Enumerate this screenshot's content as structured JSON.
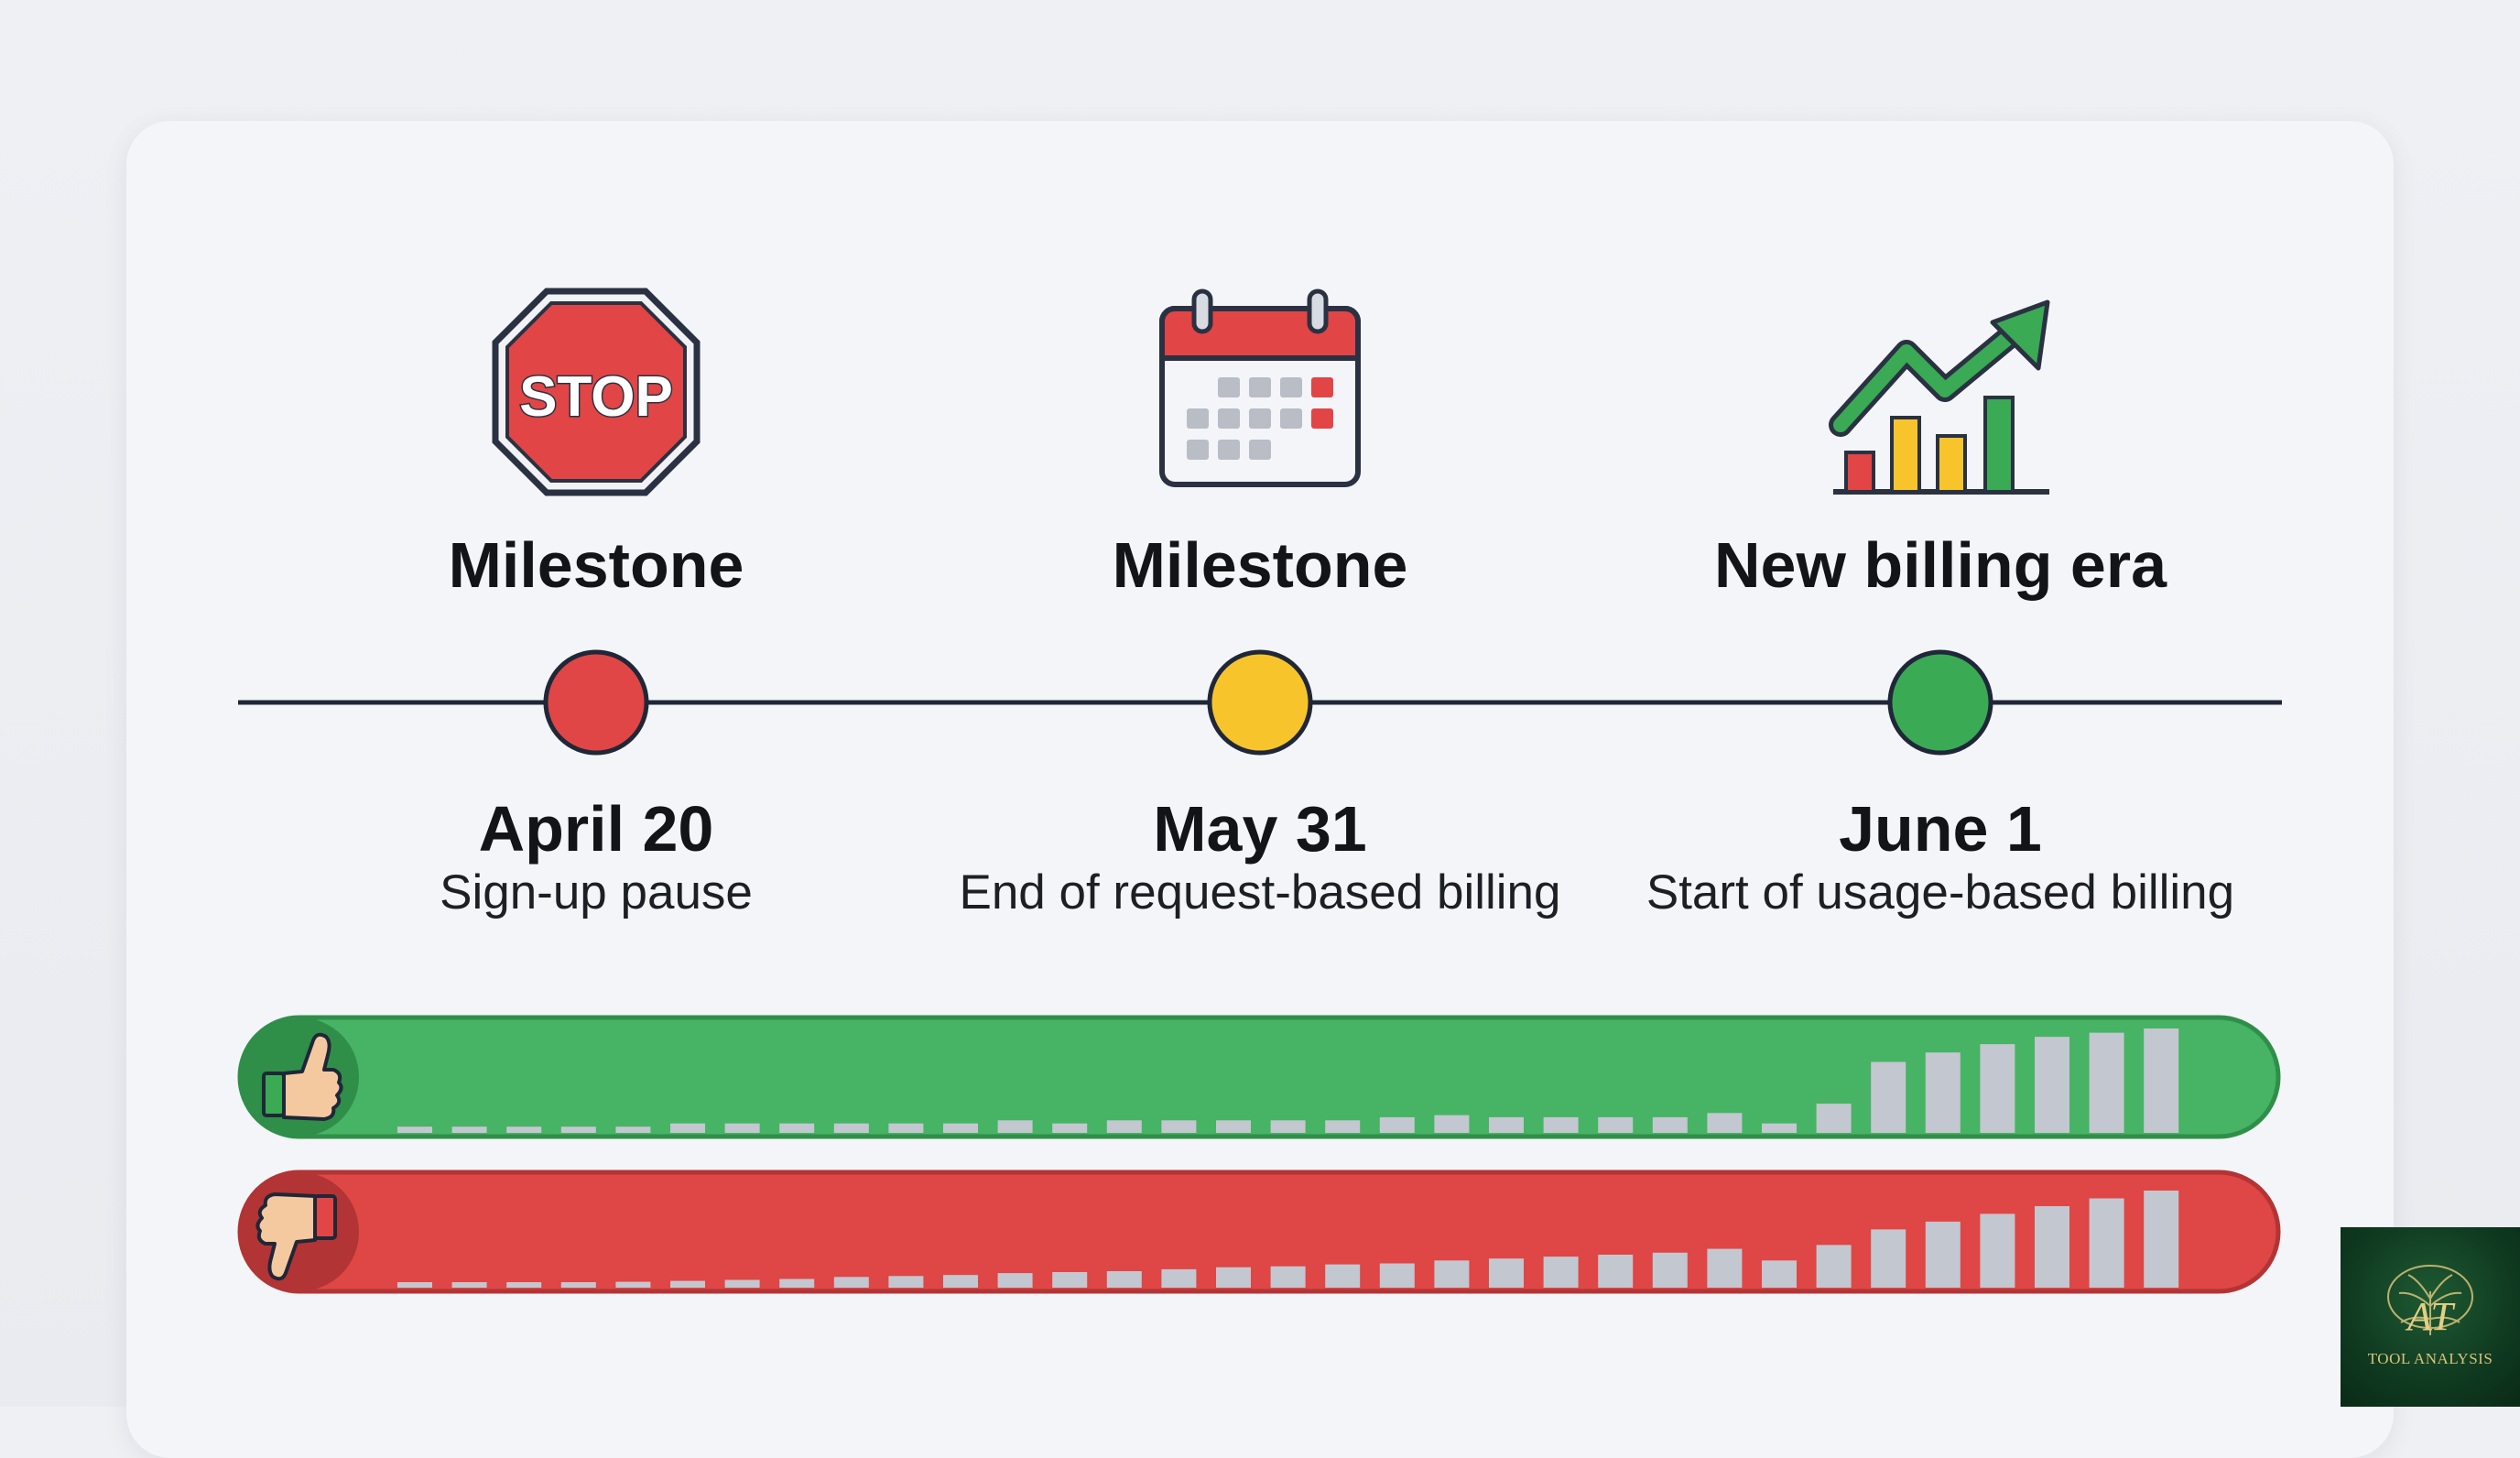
{
  "milestones": [
    {
      "icon": "stop-sign-icon",
      "stop_text": "STOP",
      "title": "Milestone",
      "date": "April 20",
      "description": "Sign-up pause",
      "dot_color": "#e04646"
    },
    {
      "icon": "calendar-icon",
      "title": "Milestone",
      "date": "May 31",
      "description": "End of request-based billing",
      "dot_color": "#f7c52b"
    },
    {
      "icon": "growth-chart-icon",
      "title": "New billing era",
      "date": "June 1",
      "description": "Start of usage-based billing",
      "dot_color": "#3aaa55"
    }
  ],
  "bars": {
    "positive": {
      "icon": "thumbs-up-icon",
      "color": "#47b364",
      "levels": [
        0.06,
        0.06,
        0.06,
        0.06,
        0.06,
        0.09,
        0.09,
        0.09,
        0.09,
        0.09,
        0.09,
        0.12,
        0.09,
        0.12,
        0.12,
        0.12,
        0.12,
        0.12,
        0.15,
        0.17,
        0.15,
        0.15,
        0.15,
        0.15,
        0.19,
        0.09,
        0.28,
        0.68,
        0.77,
        0.85,
        0.92,
        0.96,
        1.0
      ]
    },
    "negative": {
      "icon": "thumbs-down-icon",
      "color": "#df4646",
      "levels": [
        0.04,
        0.04,
        0.04,
        0.05,
        0.06,
        0.07,
        0.08,
        0.09,
        0.11,
        0.12,
        0.13,
        0.15,
        0.16,
        0.17,
        0.19,
        0.21,
        0.22,
        0.24,
        0.25,
        0.28,
        0.3,
        0.32,
        0.34,
        0.36,
        0.4,
        0.28,
        0.44,
        0.6,
        0.68,
        0.76,
        0.84,
        0.92,
        1.0
      ]
    }
  },
  "logo": {
    "monogram": "AT",
    "text": "TOOL ANALYSIS"
  }
}
